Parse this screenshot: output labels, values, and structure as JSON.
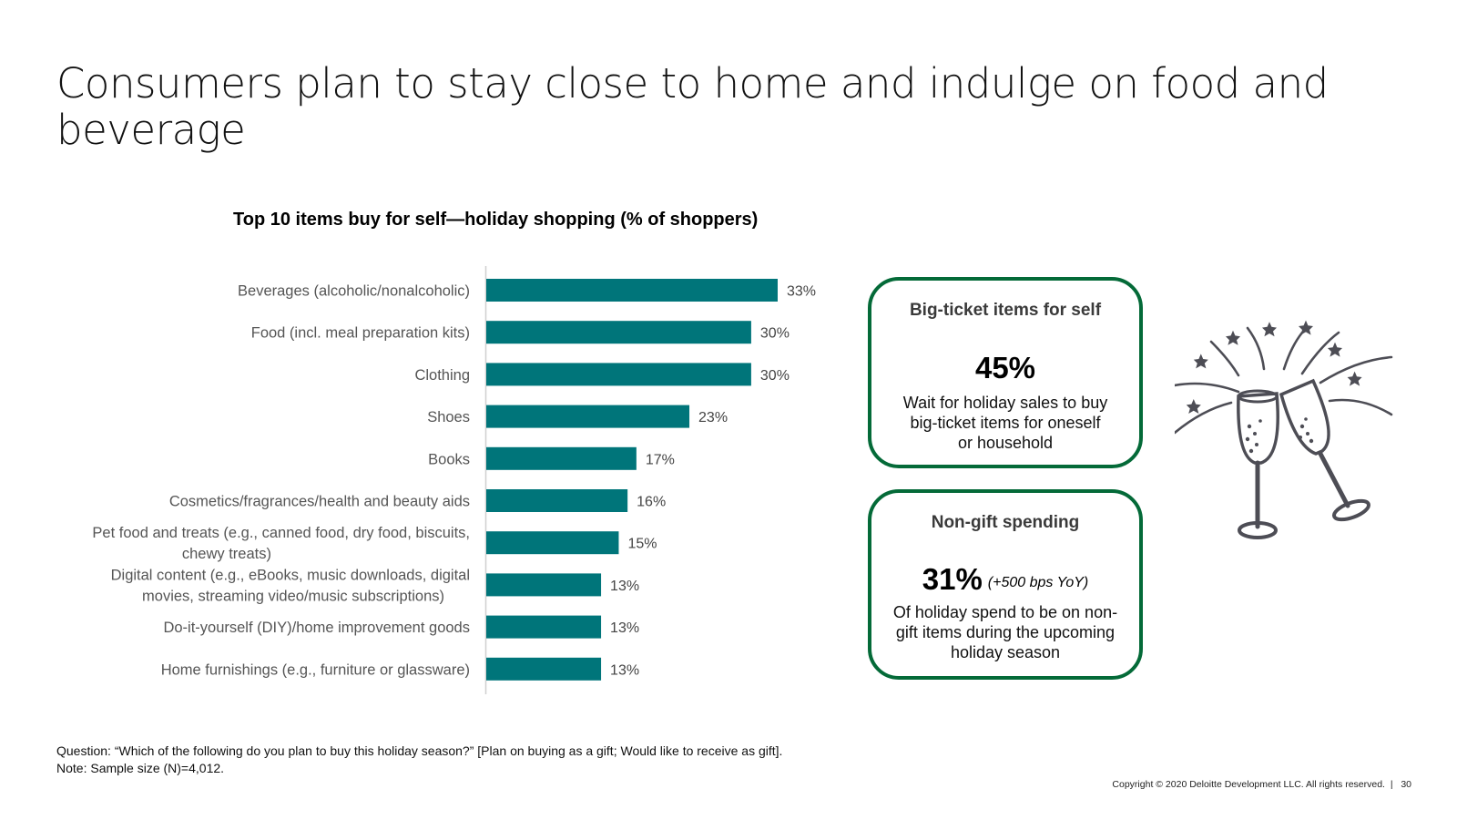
{
  "title": "Consumers plan to stay close to home and indulge on food and beverage",
  "chart_data": {
    "type": "bar",
    "orientation": "horizontal",
    "title": "Top 10 items buy for self—holiday shopping (% of shoppers)",
    "xlabel": "",
    "ylabel": "",
    "xlim": [
      0,
      35
    ],
    "grid": false,
    "legend": "none",
    "bar_color": "#00757a",
    "categories": [
      "Beverages (alcoholic/nonalcoholic)",
      "Food (incl. meal preparation kits)",
      "Clothing",
      "Shoes",
      "Books",
      "Cosmetics/fragrances/health and beauty aids",
      "Pet food and treats (e.g., canned food, dry food, biscuits, chewy treats)",
      "Digital content (e.g., eBooks, music downloads, digital movies, streaming video/music subscriptions)",
      "Do-it-yourself (DIY)/home improvement goods",
      "Home furnishings (e.g., furniture or glassware)"
    ],
    "category_lines": [
      [
        "Beverages (alcoholic/nonalcoholic)"
      ],
      [
        "Food (incl. meal preparation kits)"
      ],
      [
        "Clothing"
      ],
      [
        "Shoes"
      ],
      [
        "Books"
      ],
      [
        "Cosmetics/fragrances/health and beauty aids"
      ],
      [
        "Pet food and treats (e.g., canned food, dry food, biscuits,",
        "chewy treats)"
      ],
      [
        "Digital content (e.g., eBooks, music downloads, digital",
        "movies, streaming video/music subscriptions)"
      ],
      [
        "Do-it-yourself (DIY)/home improvement goods"
      ],
      [
        "Home furnishings (e.g., furniture or glassware)"
      ]
    ],
    "values": [
      33,
      30,
      30,
      23,
      17,
      16,
      15,
      13,
      13,
      13
    ],
    "value_labels": [
      "33%",
      "30%",
      "30%",
      "23%",
      "17%",
      "16%",
      "15%",
      "13%",
      "13%",
      "13%"
    ]
  },
  "cards": [
    {
      "title": "Big-ticket items for self",
      "stat": "45%",
      "stat_note": "",
      "description": "Wait for holiday sales to buy big-ticket items for oneself or household"
    },
    {
      "title": "Non-gift spending",
      "stat": "31%",
      "stat_note": "(+500 bps YoY)",
      "description": "Of holiday spend to be on non-gift items during the upcoming holiday season"
    }
  ],
  "colors": {
    "accent_green": "#046a38",
    "bar_teal": "#00757a"
  },
  "illustration_icon": "champagne-toast-icon",
  "footnote": {
    "question": "Question: “Which of the following do you plan to buy this holiday season?” [Plan on buying as a gift; Would like to receive as gift].",
    "note": "Note: Sample size (N)=4,012."
  },
  "copyright": "Copyright © 2020 Deloitte Development LLC. All rights reserved.",
  "page_number": "30"
}
